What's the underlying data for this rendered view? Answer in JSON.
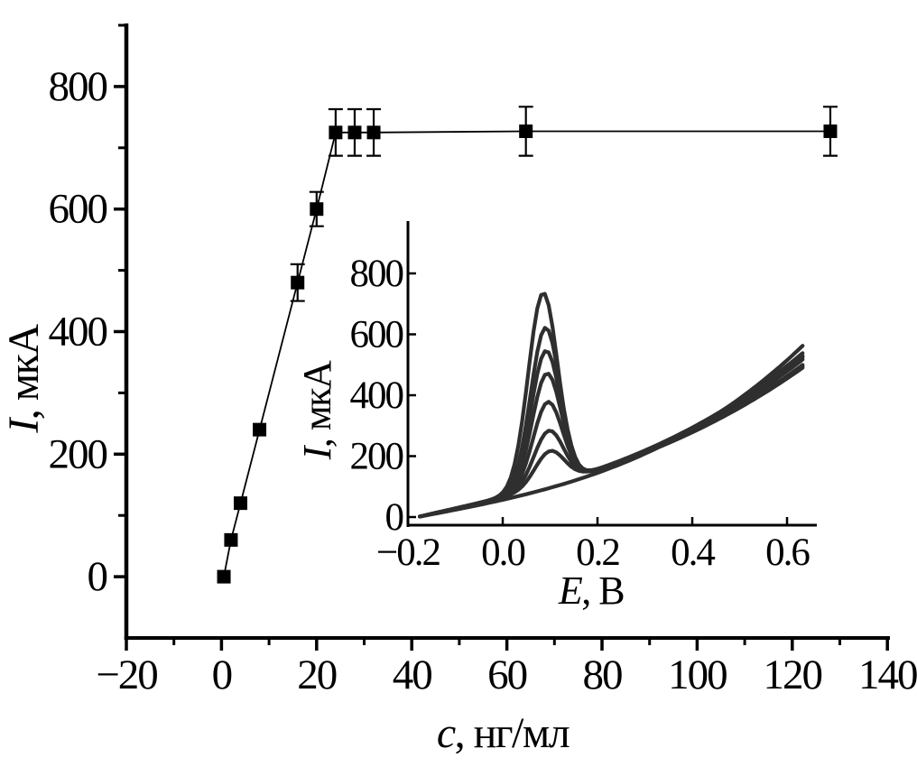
{
  "figure": {
    "background": "#ffffff",
    "ink_color": "#000000",
    "inset_curve_color": "#2f2f2f"
  },
  "chart_data": [
    {
      "id": "main",
      "type": "scatter",
      "title": "",
      "xlabel": {
        "variable": "c",
        "rest": ", нг/мл"
      },
      "ylabel": {
        "variable": "I",
        "rest": ", мкА"
      },
      "xlim": [
        -20,
        140
      ],
      "ylim": [
        -100,
        900
      ],
      "grid": false,
      "x_ticks": [
        -20,
        0,
        20,
        40,
        60,
        80,
        100,
        120,
        140
      ],
      "x_tick_labels": [
        "−20",
        "0",
        "20",
        "40",
        "60",
        "80",
        "100",
        "120",
        "140"
      ],
      "x_minor_ticks": [
        -10,
        10,
        30,
        50,
        70,
        90,
        110,
        130
      ],
      "y_ticks": [
        0,
        200,
        400,
        600,
        800
      ],
      "y_tick_labels": [
        "0",
        "200",
        "400",
        "600",
        "800"
      ],
      "y_minor_ticks": [
        100,
        300,
        500,
        700,
        900
      ],
      "series": [
        {
          "name": "calibration-curve",
          "marker": "filled-square",
          "line": true,
          "color": "#000000",
          "x": [
            0.5,
            2,
            4,
            8,
            16,
            20,
            24,
            28,
            32,
            64,
            128
          ],
          "y": [
            0,
            60,
            120,
            240,
            480,
            600,
            725,
            725,
            725,
            727,
            727
          ],
          "yerr": [
            0,
            0,
            0,
            0,
            30,
            28,
            38,
            38,
            38,
            40,
            40
          ]
        }
      ]
    },
    {
      "id": "inset",
      "type": "line",
      "title": "",
      "xlabel": {
        "variable": "E",
        "rest": ", В"
      },
      "ylabel": {
        "variable": "I",
        "rest": ", мкА"
      },
      "xlim": [
        -0.2,
        0.67
      ],
      "ylim": [
        -30,
        970
      ],
      "grid": false,
      "x_ticks": [
        -0.2,
        0.0,
        0.2,
        0.4,
        0.6
      ],
      "x_tick_labels": [
        "−0.2",
        "0.0",
        "0.2",
        "0.4",
        "0.6"
      ],
      "y_ticks": [
        0,
        200,
        400,
        600,
        800
      ],
      "y_tick_labels": [
        "0",
        "200",
        "400",
        "600",
        "800"
      ],
      "E_range": [
        -0.175,
        0.64
      ],
      "curves": [
        {
          "name": "voltammogram-1",
          "peak_current": 740,
          "peak_potential": 0.085,
          "peak_amp": 635,
          "peak_width": 0.031,
          "bg": [
            352,
            430
          ]
        },
        {
          "name": "voltammogram-2",
          "peak_current": 625,
          "peak_potential": 0.09,
          "peak_amp": 520,
          "peak_width": 0.031,
          "bg": [
            350,
            390
          ]
        },
        {
          "name": "voltammogram-3",
          "peak_current": 548,
          "peak_potential": 0.091,
          "peak_amp": 443,
          "peak_width": 0.031,
          "bg": [
            348,
            450
          ]
        },
        {
          "name": "voltammogram-4",
          "peak_current": 473,
          "peak_potential": 0.093,
          "peak_amp": 368,
          "peak_width": 0.031,
          "bg": [
            352,
            380
          ]
        },
        {
          "name": "voltammogram-5",
          "peak_current": 378,
          "peak_potential": 0.095,
          "peak_amp": 273,
          "peak_width": 0.031,
          "bg": [
            347,
            460
          ]
        },
        {
          "name": "voltammogram-6",
          "peak_current": 283,
          "peak_potential": 0.097,
          "peak_amp": 178,
          "peak_width": 0.031,
          "bg": [
            350,
            400
          ]
        },
        {
          "name": "voltammogram-7",
          "peak_current": 216,
          "peak_potential": 0.099,
          "peak_amp": 110,
          "peak_width": 0.031,
          "bg": [
            345,
            480
          ]
        },
        {
          "name": "background-curve",
          "peak_current": 0,
          "peak_potential": 0.0,
          "peak_amp": 0,
          "peak_width": 0.031,
          "bg": [
            295,
            600
          ]
        }
      ]
    }
  ]
}
